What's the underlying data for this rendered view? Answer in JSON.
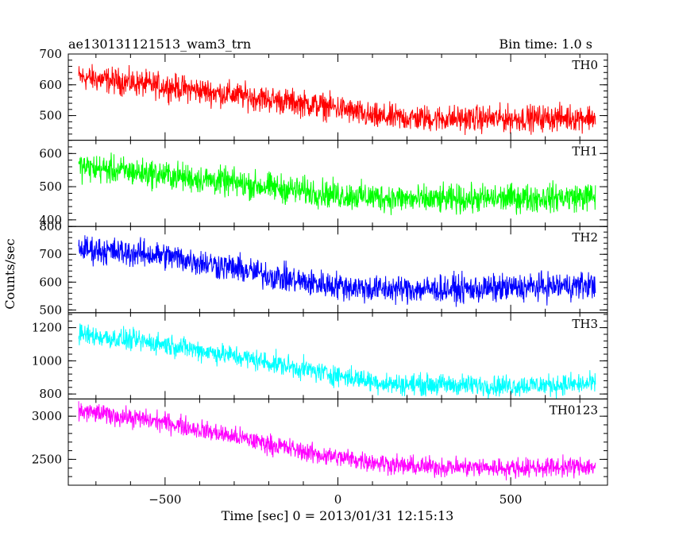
{
  "chart_data": {
    "type": "line",
    "title_left": "ae130131121513_wam3_trn",
    "title_right": "Bin time: 1.0 s",
    "xlabel": "Time [sec] 0 = 2013/01/31 12:15:13",
    "ylabel": "Counts/sec",
    "xlim": [
      -780,
      780
    ],
    "x_ticks": [
      -500,
      0,
      500
    ],
    "x_tick_labels": [
      "−500",
      "0",
      "500"
    ],
    "x_data_range": [
      -750,
      745
    ],
    "bin_time_s": 1.0,
    "panels": [
      {
        "name": "TH0",
        "color": "#ff0000",
        "ylim": [
          420,
          700
        ],
        "y_ticks": [
          500,
          600,
          700
        ],
        "trend": [
          [
            -750,
            625
          ],
          [
            -500,
            595
          ],
          [
            -250,
            560
          ],
          [
            0,
            525
          ],
          [
            100,
            495
          ],
          [
            300,
            490
          ],
          [
            500,
            490
          ],
          [
            745,
            495
          ]
        ],
        "noise_amplitude": 30
      },
      {
        "name": "TH1",
        "color": "#00ff00",
        "ylim": [
          380,
          640
        ],
        "y_ticks": [
          400,
          500,
          600
        ],
        "trend": [
          [
            -750,
            560
          ],
          [
            -500,
            535
          ],
          [
            -250,
            505
          ],
          [
            0,
            475
          ],
          [
            250,
            460
          ],
          [
            500,
            465
          ],
          [
            745,
            470
          ]
        ],
        "noise_amplitude": 30
      },
      {
        "name": "TH2",
        "color": "#0000ff",
        "ylim": [
          490,
          800
        ],
        "y_ticks": [
          500,
          600,
          700,
          800
        ],
        "trend": [
          [
            -750,
            720
          ],
          [
            -500,
            695
          ],
          [
            -300,
            650
          ],
          [
            -100,
            600
          ],
          [
            100,
            575
          ],
          [
            400,
            575
          ],
          [
            745,
            590
          ]
        ],
        "noise_amplitude": 35
      },
      {
        "name": "TH3",
        "color": "#00ffff",
        "ylim": [
          770,
          1290
        ],
        "y_ticks": [
          800,
          1000,
          1200
        ],
        "trend": [
          [
            -750,
            1160
          ],
          [
            -500,
            1100
          ],
          [
            -250,
            1010
          ],
          [
            -50,
            930
          ],
          [
            150,
            860
          ],
          [
            500,
            850
          ],
          [
            745,
            860
          ]
        ],
        "noise_amplitude": 45
      },
      {
        "name": "TH0123",
        "color": "#ff00ff",
        "ylim": [
          2200,
          3200
        ],
        "y_ticks": [
          2500,
          3000
        ],
        "trend": [
          [
            -750,
            3060
          ],
          [
            -500,
            2930
          ],
          [
            -250,
            2720
          ],
          [
            -50,
            2550
          ],
          [
            200,
            2420
          ],
          [
            500,
            2400
          ],
          [
            745,
            2420
          ]
        ],
        "noise_amplitude": 80
      }
    ]
  }
}
